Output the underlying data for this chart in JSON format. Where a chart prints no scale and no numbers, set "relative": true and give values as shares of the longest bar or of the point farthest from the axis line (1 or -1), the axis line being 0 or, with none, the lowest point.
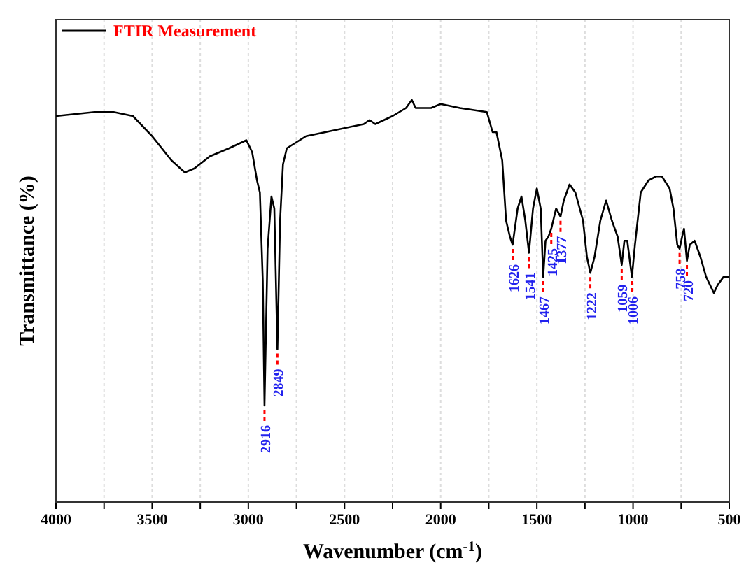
{
  "chart_data": {
    "type": "line",
    "xlabel": "Wavenumber (cm$^{-1}$)",
    "ylabel": "Transmittance (%)",
    "relative": true,
    "xlim": [
      4000,
      500
    ],
    "xticks": [
      4000,
      {
        "value": 3750,
        "label": null
      },
      3500,
      {
        "value": 3250,
        "label": null
      },
      3000,
      {
        "value": 2750,
        "label": null
      },
      2500,
      {
        "value": 2250,
        "label": null
      },
      2000,
      {
        "value": 1750,
        "label": null
      },
      1500,
      {
        "value": 1250,
        "label": null
      },
      1000,
      {
        "value": 750,
        "label": null
      },
      500
    ],
    "grid": "x",
    "legend": "top left",
    "line_style": "solid",
    "marker": "none",
    "x": [
      4000,
      3800,
      3700,
      3600,
      3500,
      3400,
      3330,
      3280,
      3200,
      3100,
      3010,
      2980,
      2955,
      2940,
      2925,
      2916,
      2900,
      2880,
      2865,
      2849,
      2835,
      2820,
      2800,
      2700,
      2600,
      2400,
      2370,
      2340,
      2250,
      2180,
      2150,
      2130,
      2050,
      2000,
      1900,
      1760,
      1730,
      1710,
      1680,
      1660,
      1640,
      1626,
      1600,
      1580,
      1560,
      1541,
      1520,
      1500,
      1480,
      1467,
      1455,
      1440,
      1425,
      1400,
      1377,
      1360,
      1330,
      1300,
      1260,
      1240,
      1222,
      1200,
      1170,
      1140,
      1110,
      1080,
      1059,
      1045,
      1030,
      1006,
      990,
      960,
      920,
      880,
      850,
      810,
      790,
      770,
      758,
      745,
      735,
      720,
      705,
      680,
      650,
      620,
      580,
      560,
      530,
      500
    ],
    "series": [
      {
        "name": "FTIR Measurement",
        "color": "#000000",
        "values": [
          0.96,
          0.97,
          0.97,
          0.96,
          0.91,
          0.85,
          0.82,
          0.83,
          0.86,
          0.88,
          0.9,
          0.87,
          0.8,
          0.77,
          0.55,
          0.24,
          0.63,
          0.76,
          0.73,
          0.38,
          0.7,
          0.84,
          0.88,
          0.91,
          0.92,
          0.94,
          0.95,
          0.94,
          0.96,
          0.98,
          1.0,
          0.98,
          0.98,
          0.99,
          0.98,
          0.97,
          0.92,
          0.92,
          0.85,
          0.7,
          0.66,
          0.64,
          0.73,
          0.76,
          0.7,
          0.62,
          0.73,
          0.78,
          0.73,
          0.56,
          0.65,
          0.66,
          0.68,
          0.73,
          0.71,
          0.75,
          0.79,
          0.77,
          0.7,
          0.61,
          0.57,
          0.61,
          0.7,
          0.75,
          0.7,
          0.66,
          0.59,
          0.65,
          0.65,
          0.56,
          0.64,
          0.77,
          0.8,
          0.81,
          0.81,
          0.78,
          0.73,
          0.64,
          0.63,
          0.66,
          0.68,
          0.6,
          0.64,
          0.65,
          0.61,
          0.56,
          0.52,
          0.54,
          0.56,
          0.56
        ]
      }
    ],
    "annotations": [
      {
        "text": "2916",
        "x": 2916,
        "y": 0.24
      },
      {
        "text": "2849",
        "x": 2849,
        "y": 0.38
      },
      {
        "text": "1626",
        "x": 1626,
        "y": 0.64
      },
      {
        "text": "1541",
        "x": 1541,
        "y": 0.62
      },
      {
        "text": "1467",
        "x": 1467,
        "y": 0.56
      },
      {
        "text": "1425",
        "x": 1425,
        "y": 0.68
      },
      {
        "text": "1377",
        "x": 1377,
        "y": 0.71
      },
      {
        "text": "1222",
        "x": 1222,
        "y": 0.57
      },
      {
        "text": "1059",
        "x": 1059,
        "y": 0.59
      },
      {
        "text": "1006",
        "x": 1006,
        "y": 0.56
      },
      {
        "text": "758",
        "x": 758,
        "y": 0.63
      },
      {
        "text": "720",
        "x": 720,
        "y": 0.6
      }
    ]
  }
}
